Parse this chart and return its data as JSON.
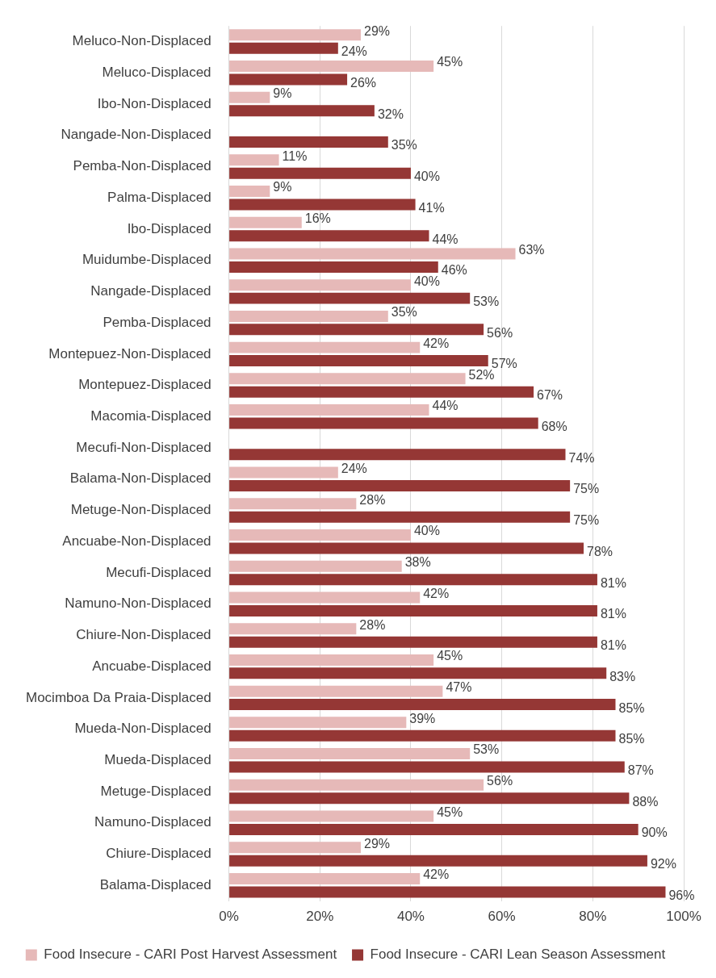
{
  "chart_data": {
    "type": "bar",
    "orientation": "horizontal",
    "categories": [
      "Meluco-Non-Displaced",
      "Meluco-Displaced",
      "Ibo-Non-Displaced",
      "Nangade-Non-Displaced",
      "Pemba-Non-Displaced",
      "Palma-Displaced",
      "Ibo-Displaced",
      "Muidumbe-Displaced",
      "Nangade-Displaced",
      "Pemba-Displaced",
      "Montepuez-Non-Displaced",
      "Montepuez-Displaced",
      "Macomia-Displaced",
      "Mecufi-Non-Displaced",
      "Balama-Non-Displaced",
      "Metuge-Non-Displaced",
      "Ancuabe-Non-Displaced",
      "Mecufi-Displaced",
      "Namuno-Non-Displaced",
      "Chiure-Non-Displaced",
      "Ancuabe-Displaced",
      "Mocimboa Da Praia-Displaced",
      "Mueda-Non-Displaced",
      "Mueda-Displaced",
      "Metuge-Displaced",
      "Namuno-Displaced",
      "Chiure-Displaced",
      "Balama-Displaced"
    ],
    "series": [
      {
        "name": "Food Insecure - CARI Post Harvest Assessment",
        "color": "#e6b9b8",
        "values": [
          29,
          45,
          9,
          null,
          11,
          9,
          16,
          63,
          40,
          35,
          42,
          52,
          44,
          null,
          24,
          28,
          40,
          38,
          42,
          28,
          45,
          47,
          39,
          53,
          56,
          45,
          29,
          42
        ],
        "value_labels": [
          "29%",
          "45%",
          "9%",
          null,
          "11%",
          "9%",
          "16%",
          "63%",
          "40%",
          "35%",
          "42%",
          "52%",
          "44%",
          null,
          "24%",
          "28%",
          "40%",
          "38%",
          "42%",
          "28%",
          "45%",
          "47%",
          "39%",
          "53%",
          "56%",
          "45%",
          "29%",
          "42%"
        ]
      },
      {
        "name": "Food Insecure - CARI Lean Season Assessment",
        "color": "#953735",
        "values": [
          24,
          26,
          32,
          35,
          40,
          41,
          44,
          46,
          53,
          56,
          57,
          67,
          68,
          74,
          75,
          75,
          78,
          81,
          81,
          81,
          83,
          85,
          85,
          87,
          88,
          90,
          92,
          96
        ],
        "value_labels": [
          "24%",
          "26%",
          "32%",
          "35%",
          "40%",
          "41%",
          "44%",
          "46%",
          "53%",
          "56%",
          "57%",
          "67%",
          "68%",
          "74%",
          "75%",
          "75%",
          "78%",
          "81%",
          "81%",
          "81%",
          "83%",
          "85%",
          "85%",
          "87%",
          "88%",
          "90%",
          "92%",
          "96%"
        ]
      }
    ],
    "xlim": [
      0,
      100
    ],
    "xticks": [
      {
        "value": 0,
        "label": "0%"
      },
      {
        "value": 20,
        "label": "20%"
      },
      {
        "value": 40,
        "label": "40%"
      },
      {
        "value": 60,
        "label": "60%"
      },
      {
        "value": 80,
        "label": "80%"
      },
      {
        "value": 100,
        "label": "100%"
      }
    ],
    "grid": "x",
    "legend": "bottom"
  }
}
